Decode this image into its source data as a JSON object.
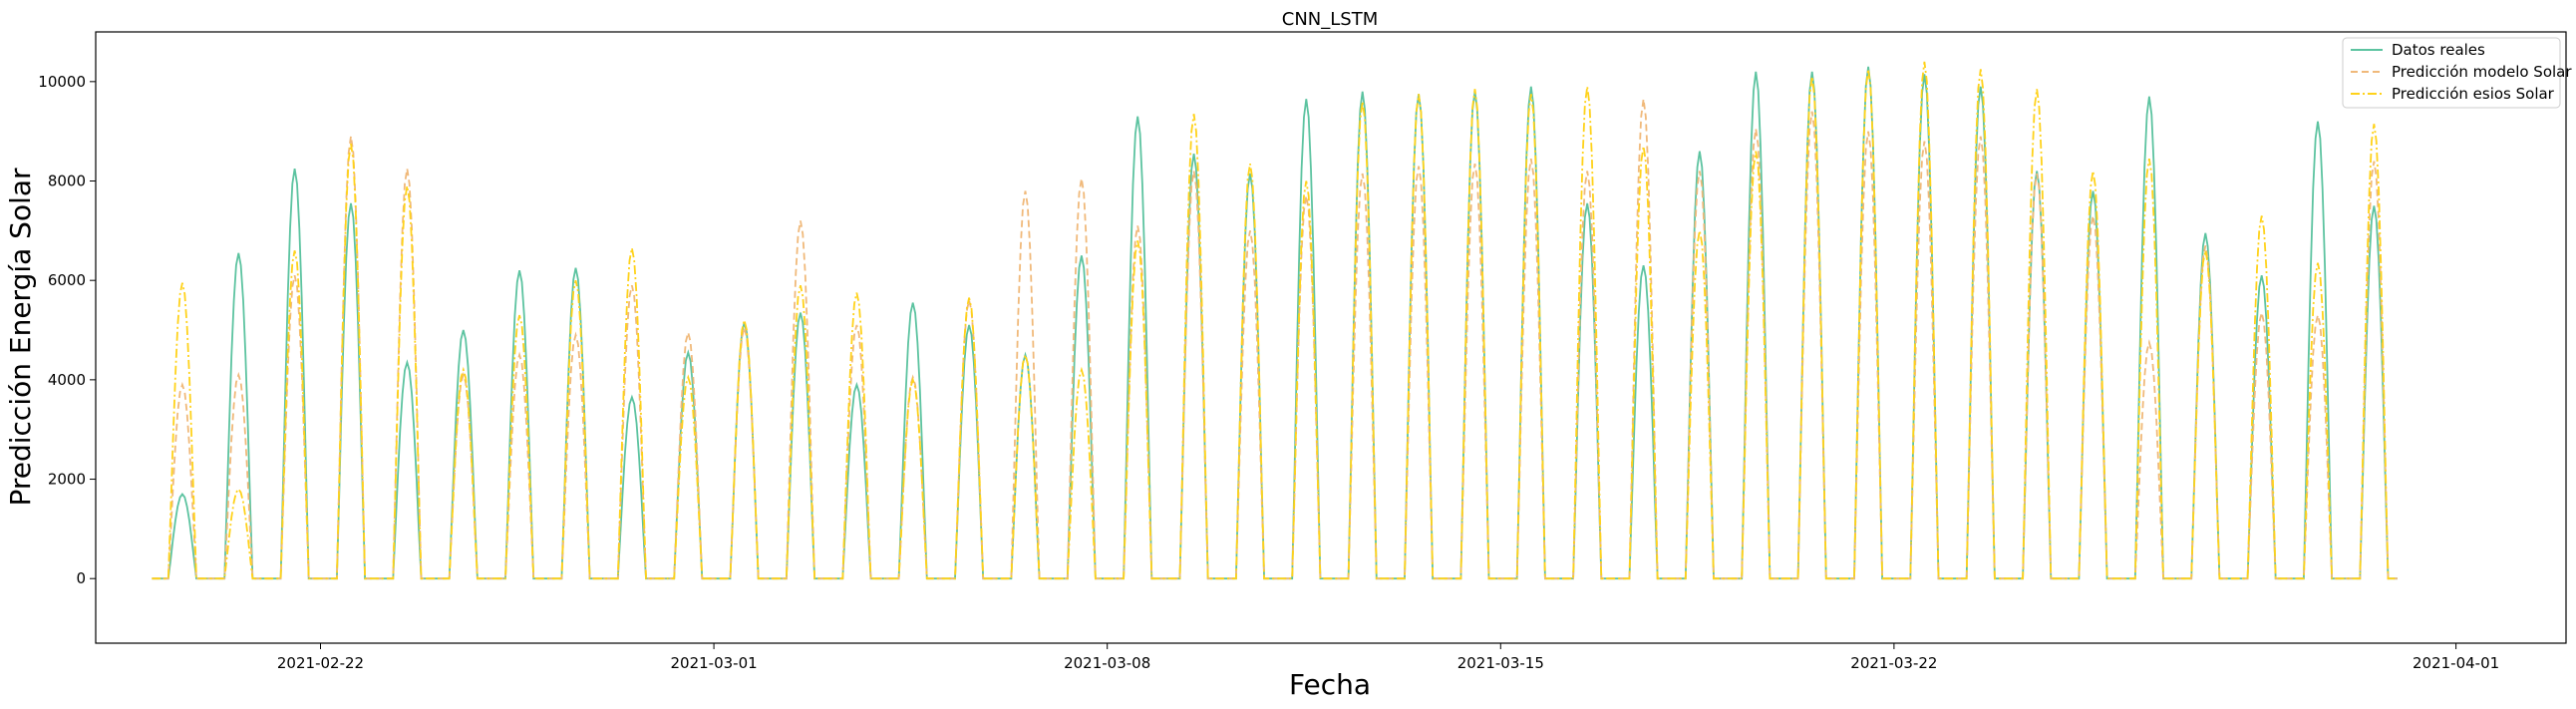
{
  "chart_data": {
    "type": "line",
    "title": "CNN_LSTM",
    "xlabel": "Fecha",
    "ylabel": "Predicción Energía Solar",
    "x_range": [
      "2021-02-18T00:00",
      "2021-04-02T23:00"
    ],
    "ylim": [
      -1300,
      11000
    ],
    "x_ticks": [
      "2021-02-22",
      "2021-03-01",
      "2021-03-08",
      "2021-03-15",
      "2021-03-22",
      "2021-04-01"
    ],
    "y_ticks": [
      0,
      2000,
      4000,
      6000,
      8000,
      10000
    ],
    "legend_position": "top-right",
    "grid": false,
    "series": [
      {
        "name": "Datos reales",
        "color": "#5cc3a0",
        "style": "solid",
        "start": "2021-02-19",
        "daily_peaks": [
          1700,
          6550,
          8250,
          7550,
          4350,
          5000,
          6200,
          6250,
          3650,
          4550,
          5150,
          5350,
          3900,
          5550,
          5100,
          4500,
          6500,
          9300,
          8550,
          8150,
          9650,
          9800,
          9750,
          9800,
          9900,
          7550,
          6300,
          8600,
          10200,
          10200,
          10300,
          10150,
          9900,
          8200,
          7800,
          9700,
          6950,
          6100,
          9200,
          7500
        ]
      },
      {
        "name": "Predicción modelo Solar",
        "color": "#f0b97a",
        "style": "dashed",
        "start": "2021-02-19",
        "daily_peaks": [
          3900,
          4100,
          6100,
          8900,
          8250,
          4100,
          4500,
          4900,
          5900,
          4950,
          5050,
          7200,
          5100,
          4050,
          5600,
          7800,
          8050,
          7100,
          8200,
          7000,
          7700,
          8150,
          8300,
          8350,
          8450,
          8200,
          9650,
          8200,
          9050,
          9400,
          9000,
          8800,
          8900,
          8150,
          7300,
          4750,
          6700,
          5350,
          5300,
          8400
        ]
      },
      {
        "name": "Predicción esios Solar",
        "color": "#ffd21a",
        "style": "dashdot",
        "start": "2021-02-19",
        "daily_peaks": [
          5950,
          1800,
          6600,
          8750,
          7900,
          4200,
          5300,
          6000,
          6650,
          4050,
          5200,
          5900,
          5750,
          4000,
          5650,
          4500,
          4200,
          6800,
          9350,
          8350,
          8000,
          9600,
          9750,
          9850,
          9750,
          9900,
          8700,
          7000,
          8600,
          10100,
          10250,
          10400,
          10250,
          9850,
          8200,
          8450,
          6600,
          7300,
          6350,
          9150
        ]
      }
    ]
  }
}
